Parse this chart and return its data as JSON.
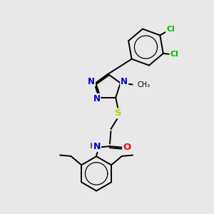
{
  "background_color": "#e8e8e8",
  "atom_colors": {
    "N": "#0000cc",
    "O": "#ff0000",
    "S": "#cccc00",
    "Cl": "#00bb00",
    "C": "#000000",
    "H": "#555555"
  },
  "bond_color": "#000000",
  "bond_width": 1.4,
  "fig_width": 3.0,
  "fig_height": 3.0,
  "dpi": 100
}
